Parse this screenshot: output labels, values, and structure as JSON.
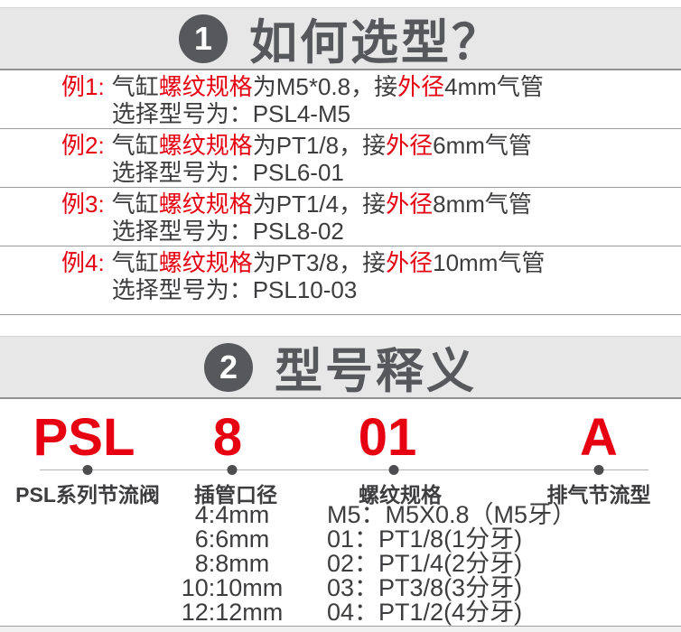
{
  "colors": {
    "accent_red": "#e60012",
    "text_dark": "#3d3d3f",
    "header_gray": "#57585b",
    "band_background": "#e7e7e8"
  },
  "section1": {
    "badge": "1",
    "title": "如何选型？",
    "examples": [
      {
        "label": "例1:",
        "prefix": "气缸",
        "thread_key": "螺纹规格",
        "mid": "为M5*0.8，接",
        "od_key": "外径",
        "tube": "4mm气管",
        "line2": "选择型号为：PSL4-M5"
      },
      {
        "label": "例2:",
        "prefix": "气缸",
        "thread_key": "螺纹规格",
        "mid": "为PT1/8，接",
        "od_key": "外径",
        "tube": "6mm气管",
        "line2": "选择型号为：PSL6-01"
      },
      {
        "label": "例3:",
        "prefix": "气缸",
        "thread_key": "螺纹规格",
        "mid": "为PT1/4，接",
        "od_key": "外径",
        "tube": "8mm气管",
        "line2": "选择型号为：PSL8-02"
      },
      {
        "label": "例4:",
        "prefix": "气缸",
        "thread_key": "螺纹规格",
        "mid": "为PT3/8，接",
        "od_key": "外径",
        "tube": "10mm气管",
        "line2": "选择型号为：PSL10-03"
      }
    ]
  },
  "section2": {
    "badge": "2",
    "title": "型号释义",
    "model_code": {
      "series": "PSL",
      "bore": "8",
      "thread": "01",
      "type": "A"
    },
    "labels": {
      "series": "PSL系列节流阀",
      "bore": "插管口径",
      "thread": "螺纹规格",
      "type": "排气节流型"
    },
    "bore_options": [
      "4:4mm",
      "6:6mm",
      "8:8mm",
      "10:10mm",
      "12:12mm"
    ],
    "thread_options": [
      "M5：M5X0.8（M5牙）",
      "01：PT1/8(1分牙)",
      "02：PT1/4(2分牙)",
      "03：PT3/8(3分牙)",
      "04：PT1/2(4分牙)"
    ]
  }
}
